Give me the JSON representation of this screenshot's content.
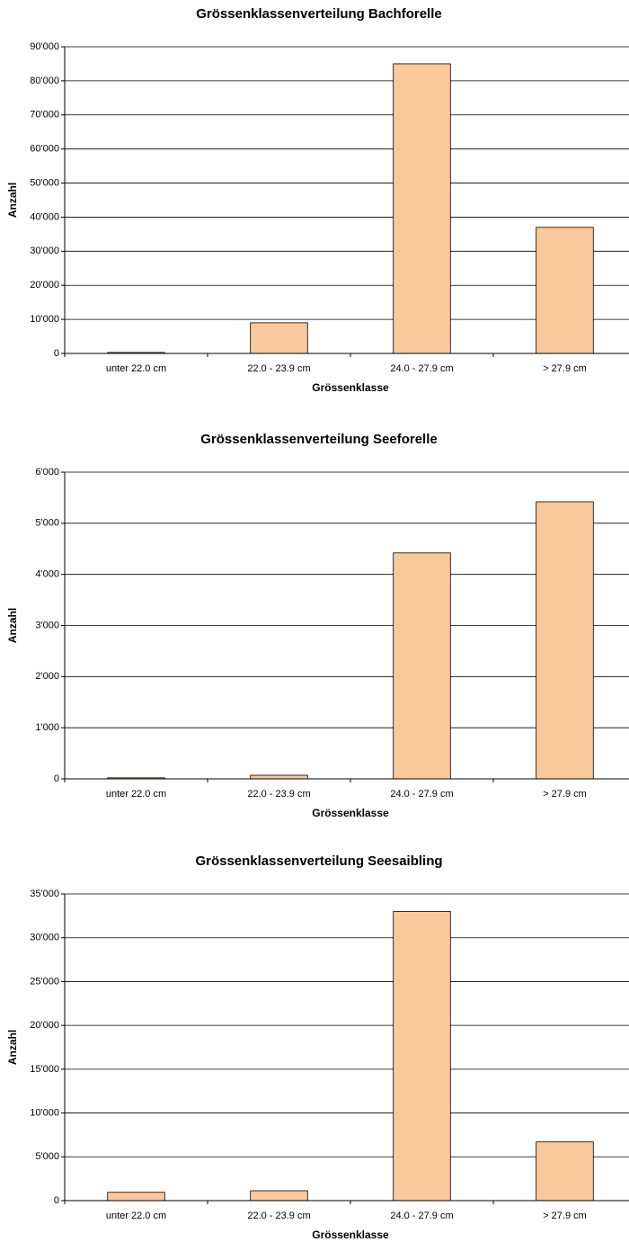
{
  "chart_data": [
    {
      "type": "bar",
      "title": "Grössenklassenverteilung Bachforelle",
      "x_label": "Grössenklasse",
      "y_label": "Anzahl",
      "categories": [
        "unter 22.0 cm",
        "22.0 - 23.9 cm",
        "24.0 - 27.9 cm",
        "> 27.9 cm"
      ],
      "values": [
        300,
        9000,
        85000,
        37000
      ],
      "color": "#f9c99b",
      "ylim": [
        0,
        90000
      ],
      "yticks": [
        0,
        {
          "value": 10000,
          "label": "10'000"
        },
        {
          "value": 20000,
          "label": "20'000"
        },
        {
          "value": 30000,
          "label": "30'000"
        },
        {
          "value": 40000,
          "label": "40'000"
        },
        {
          "value": 50000,
          "label": "50'000"
        },
        {
          "value": 60000,
          "label": "60'000"
        },
        {
          "value": 70000,
          "label": "70'000"
        },
        {
          "value": 80000,
          "label": "80'000"
        },
        {
          "value": 90000,
          "label": "90'000"
        }
      ],
      "grid": true
    },
    {
      "type": "bar",
      "title": "Grössenklassenverteilung Seeforelle",
      "x_label": "Grössenklasse",
      "y_label": "Anzahl",
      "categories": [
        "unter 22.0 cm",
        "22.0 - 23.9 cm",
        "24.0 - 27.9 cm",
        "> 27.9 cm"
      ],
      "values": [
        20,
        70,
        4420,
        5420
      ],
      "color": "#f9c99b",
      "ylim": [
        0,
        6000
      ],
      "yticks": [
        0,
        {
          "value": 1000,
          "label": "1'000"
        },
        {
          "value": 2000,
          "label": "2'000"
        },
        {
          "value": 3000,
          "label": "3'000"
        },
        {
          "value": 4000,
          "label": "4'000"
        },
        {
          "value": 5000,
          "label": "5'000"
        },
        {
          "value": 6000,
          "label": "6'000"
        }
      ],
      "grid": true
    },
    {
      "type": "bar",
      "title": "Grössenklassenverteilung Seesaibling",
      "x_label": "Grössenklasse",
      "y_label": "Anzahl",
      "categories": [
        "unter 22.0 cm",
        "22.0 - 23.9 cm",
        "24.0 - 27.9 cm",
        "> 27.9 cm"
      ],
      "values": [
        950,
        1130,
        33000,
        6700
      ],
      "color": "#f9c99b",
      "ylim": [
        0,
        35000
      ],
      "yticks": [
        0,
        {
          "value": 5000,
          "label": "5'000"
        },
        {
          "value": 10000,
          "label": "10'000"
        },
        {
          "value": 15000,
          "label": "15'000"
        },
        {
          "value": 20000,
          "label": "20'000"
        },
        {
          "value": 25000,
          "label": "25'000"
        },
        {
          "value": 30000,
          "label": "30'000"
        },
        {
          "value": 35000,
          "label": "35'000"
        }
      ],
      "grid": true
    }
  ]
}
